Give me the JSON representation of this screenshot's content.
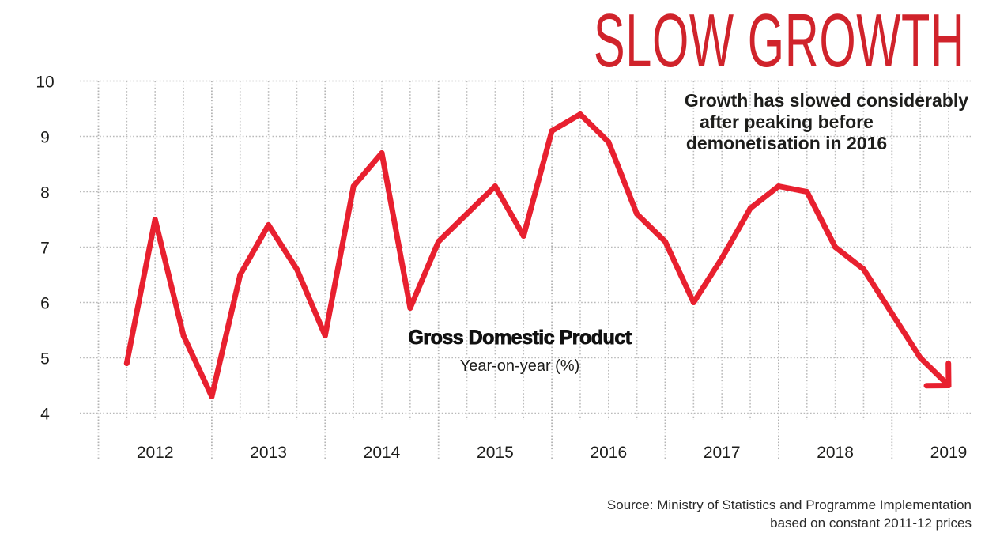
{
  "header": {
    "title": "SLOW GROWTH",
    "subtitle_lines": [
      "Growth has slowed considerably",
      "after peaking before",
      "demonetisation in 2016"
    ]
  },
  "annotation": {
    "series_title": "Gross Domestic Product",
    "series_subtitle": "Year-on-year (%)"
  },
  "footer": {
    "source_lines": [
      "Source: Ministry of Statistics and Programme Implementation",
      "based on constant 2011-12 prices"
    ]
  },
  "colors": {
    "title": "#d0232b",
    "line": "#e8202f",
    "grid": "#b9b9b9",
    "text": "#1d1d1b"
  },
  "chart_data": {
    "type": "line",
    "title": "SLOW GROWTH",
    "subtitle": "Growth has slowed considerably after peaking before demonetisation in 2016",
    "series_label": "Gross Domestic Product",
    "ylabel": "Year-on-year (%)",
    "xlabel": "",
    "ylim": [
      4,
      10
    ],
    "yticks": [
      10,
      9,
      8,
      7,
      6,
      5,
      4
    ],
    "year_ticks": [
      "2012",
      "2013",
      "2014",
      "2015",
      "2016",
      "2017",
      "2018",
      "2019"
    ],
    "quarters_per_year": 4,
    "grid": true,
    "legend": "none",
    "end_marker": "arrow",
    "series": [
      {
        "name": "GDP growth (YoY %)",
        "quarter_index": [
          1,
          2,
          3,
          4,
          5,
          6,
          7,
          8,
          9,
          10,
          11,
          12,
          13,
          14,
          15,
          16,
          17,
          18,
          19,
          20,
          21,
          22,
          23,
          24,
          25,
          26,
          27,
          28,
          29,
          30
        ],
        "values": [
          4.9,
          7.5,
          5.4,
          4.3,
          6.5,
          7.4,
          6.6,
          5.4,
          8.1,
          8.7,
          5.9,
          7.1,
          7.6,
          8.1,
          7.2,
          9.1,
          9.4,
          8.9,
          7.6,
          7.1,
          6.0,
          6.8,
          7.7,
          8.1,
          8.0,
          7.0,
          6.6,
          5.8,
          5.0,
          4.5
        ]
      }
    ]
  }
}
